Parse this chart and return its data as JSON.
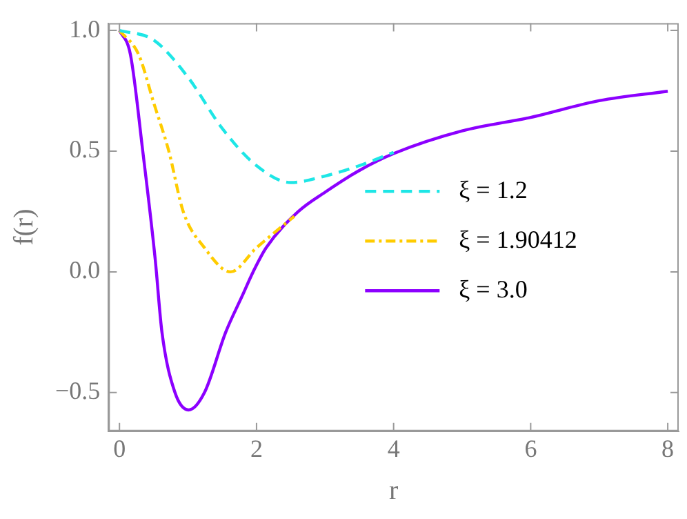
{
  "chart_data": {
    "type": "line",
    "xlabel": "r",
    "ylabel": "f(r)",
    "xlim": [
      -0.16,
      8.16
    ],
    "ylim": [
      -0.66,
      1.03
    ],
    "xticks": [
      0,
      2,
      4,
      6,
      8
    ],
    "yticks": [
      {
        "value": -0.5,
        "label": "−0.5"
      },
      {
        "value": 0,
        "label": "0.0"
      },
      {
        "value": 0.5,
        "label": "0.5"
      },
      {
        "value": 1,
        "label": "1.0"
      }
    ],
    "grid": false,
    "legend": "right",
    "marker": "none",
    "series": [
      {
        "name": "ξ = 1.2",
        "color": "#1ee6e6",
        "line_style": "dashed",
        "x": [
          0,
          0.5,
          1,
          1.5,
          2,
          2.5,
          3,
          3.5,
          4
        ],
        "values": [
          1,
          0.96,
          0.806,
          0.594,
          0.44,
          0.37,
          0.397,
          0.44,
          0.495
        ]
      },
      {
        "name": "ξ = 1.90412",
        "color": "#ffcc00",
        "line_style": "dashdot",
        "x": [
          0,
          0.28,
          0.5,
          0.72,
          0.93,
          1.24,
          1.62,
          2,
          2.55
        ],
        "values": [
          1,
          0.9,
          0.7,
          0.5,
          0.25,
          0.1,
          0,
          0.1,
          0.23
        ]
      },
      {
        "name": "ξ = 3.0",
        "color": "#8c00ff",
        "line_style": "solid",
        "x": [
          0,
          0.16,
          0.34,
          0.52,
          0.62,
          0.81,
          1.01,
          1.24,
          1.55,
          1.79,
          1.95,
          2.14,
          2.61,
          3,
          3.5,
          4,
          5,
          6,
          7,
          8
        ],
        "values": [
          1,
          0.9,
          0.5,
          0.056,
          -0.25,
          -0.5,
          -0.572,
          -0.5,
          -0.25,
          -0.1,
          0,
          0.1,
          0.25,
          0.33,
          0.42,
          0.49,
          0.584,
          0.64,
          0.709,
          0.748
        ]
      }
    ]
  }
}
